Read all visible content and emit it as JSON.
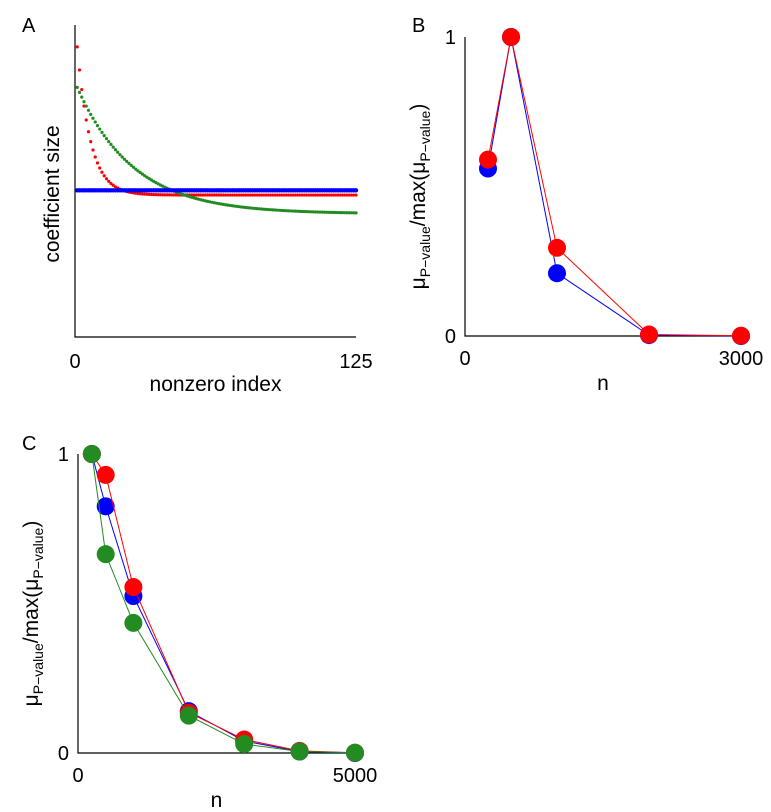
{
  "chart_data": [
    {
      "panel": "A",
      "type": "scatter",
      "xlabel": "nonzero index",
      "ylabel": "coefficient size",
      "xlim": [
        0,
        125
      ],
      "ylim": [
        0,
        1
      ],
      "xticks": [
        "0",
        "125"
      ],
      "yticks": [],
      "grid": false,
      "series": [
        {
          "color": "#ff0000",
          "curve": "exp-decay",
          "n": 125,
          "start": 0.93,
          "end": 0.455,
          "rate": 0.17
        },
        {
          "color": "#228b22",
          "curve": "exp-decay",
          "n": 125,
          "start": 0.8,
          "end": 0.395,
          "rate": 0.04
        },
        {
          "color": "#0000ff",
          "curve": "constant",
          "n": 125,
          "value": 0.47
        }
      ]
    },
    {
      "panel": "B",
      "type": "line",
      "xlabel": "n",
      "ylabel_main": "μ",
      "ylabel_sub": "P−value",
      "ylabel_mid": "/max(μ",
      "ylabel_sub2": "P−value",
      "ylabel_end": ")",
      "xlim": [
        0,
        3000
      ],
      "ylim": [
        0,
        1
      ],
      "xticks": [
        "0",
        "3000"
      ],
      "yticks": [
        "0",
        "1"
      ],
      "grid": false,
      "x": [
        250,
        500,
        1000,
        2000,
        3000
      ],
      "series": [
        {
          "color": "#0000ff",
          "values": [
            0.56,
            1.0,
            0.21,
            0.003,
            0.0
          ]
        },
        {
          "color": "#ff0000",
          "values": [
            0.59,
            1.0,
            0.295,
            0.005,
            0.001
          ]
        }
      ]
    },
    {
      "panel": "C",
      "type": "line",
      "xlabel": "n",
      "ylabel_main": "μ",
      "ylabel_sub": "P−value",
      "ylabel_mid": "/max(μ",
      "ylabel_sub2": "P−value",
      "ylabel_end": ")",
      "xlim": [
        0,
        5000
      ],
      "ylim": [
        0,
        1
      ],
      "xticks": [
        "0",
        "5000"
      ],
      "yticks": [
        "0",
        "1"
      ],
      "grid": false,
      "x": [
        250,
        500,
        1000,
        2000,
        3000,
        4000,
        5000
      ],
      "series": [
        {
          "color": "#0000ff",
          "values": [
            1.0,
            0.825,
            0.525,
            0.14,
            0.04,
            0.005,
            0.0
          ]
        },
        {
          "color": "#ff0000",
          "values": [
            1.0,
            0.93,
            0.555,
            0.135,
            0.045,
            0.007,
            0.001
          ]
        },
        {
          "color": "#228b22",
          "values": [
            1.0,
            0.665,
            0.435,
            0.125,
            0.03,
            0.005,
            0.001
          ]
        }
      ]
    }
  ]
}
